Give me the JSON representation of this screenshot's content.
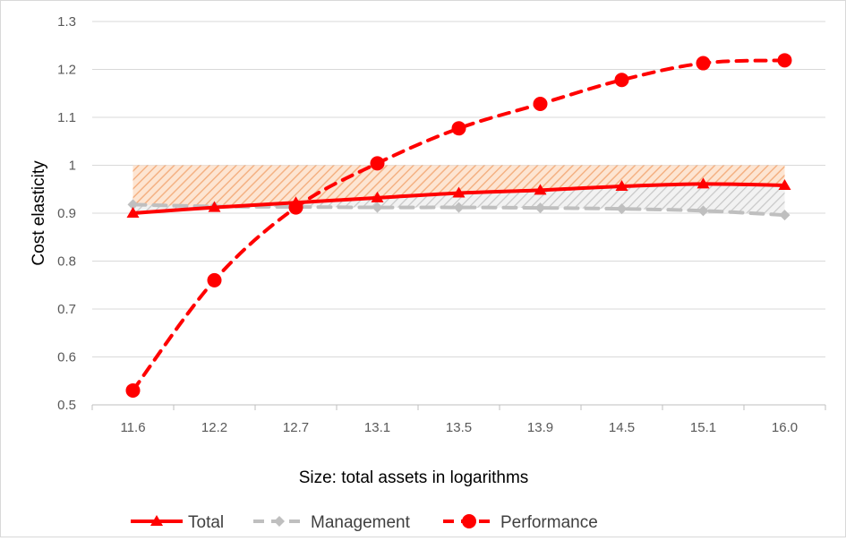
{
  "chart_data": {
    "type": "line",
    "title": "",
    "xlabel": "Size: total assets in logarithms",
    "ylabel": "Cost elasticity",
    "categories": [
      "11.6",
      "12.2",
      "12.7",
      "13.1",
      "13.5",
      "13.9",
      "14.5",
      "15.1",
      "16.0"
    ],
    "ylim": [
      0.5,
      1.3
    ],
    "yticks": [
      0.5,
      0.6,
      0.7,
      0.8,
      0.9,
      1,
      1.1,
      1.2,
      1.3
    ],
    "ytick_labels": [
      "0.5",
      "0.6",
      "0.7",
      "0.8",
      "0.9",
      "1",
      "1.1",
      "1.2",
      "1.3"
    ],
    "grid": "horizontal",
    "legend_position": "bottom",
    "series": [
      {
        "name": "Total",
        "values": [
          0.9,
          0.912,
          0.922,
          0.932,
          0.942,
          0.948,
          0.956,
          0.961,
          0.958
        ],
        "color": "#ff0000",
        "style": "solid",
        "marker": "triangle"
      },
      {
        "name": "Management",
        "values": [
          0.918,
          0.914,
          0.913,
          0.912,
          0.912,
          0.911,
          0.909,
          0.905,
          0.896
        ],
        "color": "#bfbfbf",
        "style": "dashed",
        "marker": "diamond"
      },
      {
        "name": "Performance",
        "values": [
          0.53,
          0.76,
          0.912,
          1.004,
          1.077,
          1.128,
          1.178,
          1.213,
          1.219
        ],
        "color": "#ff0000",
        "style": "dashed",
        "marker": "circle"
      }
    ],
    "shaded_bands": [
      {
        "between": [
          "Total",
          "1"
        ],
        "color": "#f4b183",
        "pattern": "hatched"
      },
      {
        "between": [
          "Management",
          "Total"
        ],
        "color": "#bfbfbf",
        "pattern": "hatched"
      }
    ]
  }
}
